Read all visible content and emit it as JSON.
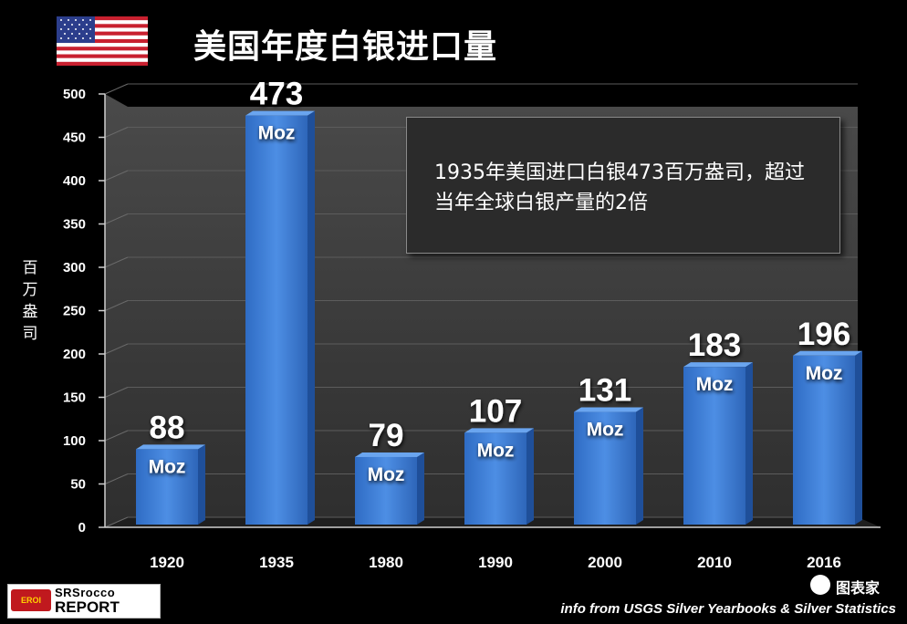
{
  "title": "美国年度白银进口量",
  "ylabel": "百万盎司",
  "callout": "1935年美国进口白银473百万盎司，超过当年全球白银产量的2倍",
  "credit": "info from USGS Silver Yearbooks & Silver Statistics",
  "logo": {
    "eroi": "EROI",
    "top": "SRSrocco",
    "bottom": "REPORT"
  },
  "watermark": "图表家",
  "colors": {
    "bar": "#3f7fd6",
    "background": "#000000",
    "plot_bg": "#3a3a3a",
    "grid": "#5a5a5a"
  },
  "chart_data": {
    "type": "bar",
    "title": "美国年度白银进口量",
    "xlabel": "",
    "ylabel": "百万盎司",
    "categories": [
      "1920",
      "1935",
      "1980",
      "1990",
      "2000",
      "2010",
      "2016"
    ],
    "values": [
      88,
      473,
      79,
      107,
      131,
      183,
      196
    ],
    "unit_label": "Moz",
    "ylim": [
      0,
      500
    ],
    "yticks": [
      0,
      50,
      100,
      150,
      200,
      250,
      300,
      350,
      400,
      450,
      500
    ],
    "grid": true,
    "annotation": "1935年美国进口白银473百万盎司，超过当年全球白银产量的2倍"
  }
}
